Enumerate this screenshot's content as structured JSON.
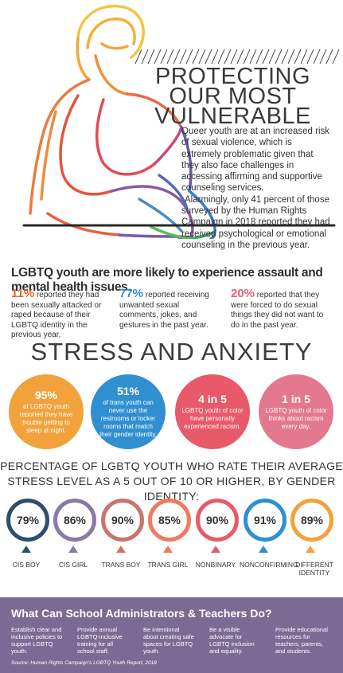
{
  "hero": {
    "title_lines": [
      "PROTECTING",
      "OUR MOST",
      "VULNERABLE"
    ],
    "intro_p1": "Queer youth are at an increased risk of sexual violence, which is extremely problematic given that they also face challenges in accessing affirming and supportive counseling services.",
    "intro_p2": "Alarmingly, only 41 percent of those surveyed by the Human Rights Campaign in 2018 reported they had received psychological or emotional counseling in the previous year."
  },
  "headline": "LGBTQ youth are more likely to experience assault and mental health issues.",
  "stats": [
    {
      "pct": "11%",
      "text": " reported they had been sexually attacked or raped because of their LGBTQ identity in the previous year.",
      "color": "#e8632a"
    },
    {
      "pct": "77%",
      "text": " reported receiving unwanted sexual comments, jokes, and gestures in the past year.",
      "color": "#2f8fd0"
    },
    {
      "pct": "20%",
      "text": " reported that they were forced to do sexual things they did not want to do in the past year.",
      "color": "#e56072"
    }
  ],
  "stress_title": "STRESS AND ANXIETY",
  "circles": [
    {
      "big": "95%",
      "small": "of LGBTQ youth reported they have trouble getting to sleep at night.",
      "color": "#f1a23a"
    },
    {
      "big": "51%",
      "small": "of trans youth can never use the restrooms or locker rooms that match their gender identity.",
      "color": "#2f8fd0"
    },
    {
      "big": "4 in 5",
      "small": "LGBTQ youth of color have personally experienced racism.",
      "color": "#e8596a"
    },
    {
      "big": "1 in 5",
      "small": "LGBTQ youth of color thinks about racism every day.",
      "color": "#e3788e"
    }
  ],
  "pct_title_line1": "PERCENTAGE OF LGBTQ YOUTH WHO RATE THEIR AVERAGE",
  "pct_title_line2": "STRESS LEVEL AS A 5 OUT OF 10 OR HIGHER, BY GENDER IDENTITY:",
  "genders": [
    {
      "value": "79%",
      "label": "CIS BOY",
      "color": "#2d4f6e"
    },
    {
      "value": "86%",
      "label": "CIS GIRL",
      "color": "#8a7aa6"
    },
    {
      "value": "90%",
      "label": "TRANS BOY",
      "color": "#c8756a"
    },
    {
      "value": "85%",
      "label": "TRANS GIRL",
      "color": "#f07b5c"
    },
    {
      "value": "90%",
      "label": "NONBINARY",
      "color": "#e8596a"
    },
    {
      "value": "91%",
      "label": "NONCONFIRMING",
      "color": "#2f8fd0"
    },
    {
      "value": "89%",
      "label": "DIFFERENT IDENTITY",
      "color": "#f1a23a"
    }
  ],
  "footer": {
    "title": "What Can School Administrators & Teachers Do?",
    "cols": [
      "Establish clear and inclusive policies to support LGBTQ youth.",
      "Provide annual LGBTQ-inclusive training for all school staff.",
      "Be intentional about creating safe spaces for LGBTQ youth.",
      "Be a visible advocate for LGBTQ inclusion and equality.",
      "Provide educational resources for teachers, parents, and students."
    ],
    "source": "Source: Human Rights Campaign's LGBTQ Youth Report, 2018"
  }
}
